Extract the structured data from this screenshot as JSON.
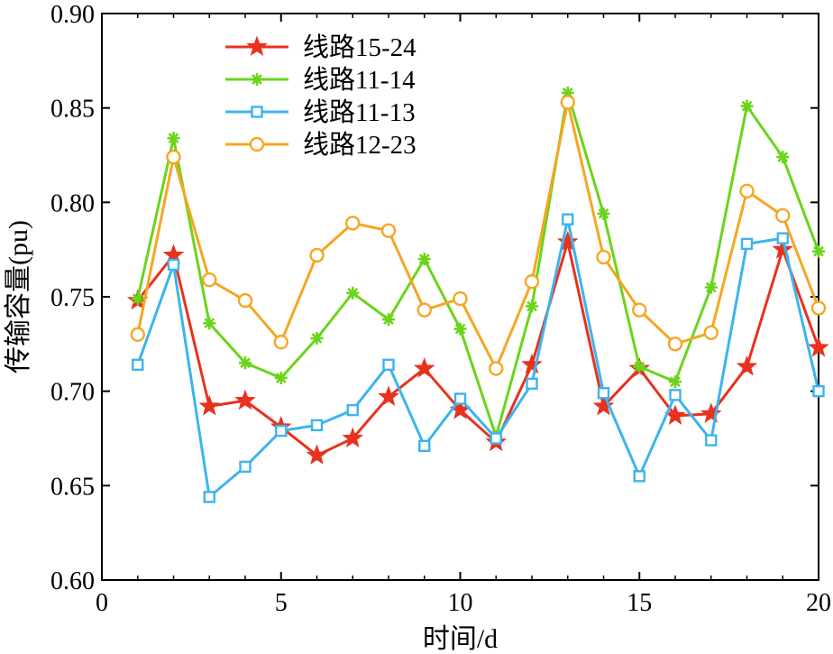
{
  "chart_data": {
    "type": "line",
    "xlabel": "时间/d",
    "ylabel": "传输容量(pu)",
    "xlim": [
      0,
      20
    ],
    "ylim": [
      0.6,
      0.9
    ],
    "xticks": [
      "0",
      "5",
      "10",
      "15",
      "20"
    ],
    "yticks": [
      "0.60",
      "0.65",
      "0.70",
      "0.75",
      "0.80",
      "0.85",
      "0.90"
    ],
    "grid": false,
    "legend_position": "top-left",
    "x": [
      1,
      2,
      3,
      4,
      5,
      6,
      7,
      8,
      9,
      10,
      11,
      12,
      13,
      14,
      15,
      16,
      17,
      18,
      19,
      20
    ],
    "series": [
      {
        "name": "线路15-24",
        "color": "#e8321e",
        "marker": "star",
        "values": [
          0.748,
          0.772,
          0.692,
          0.695,
          0.681,
          0.666,
          0.675,
          0.697,
          0.712,
          0.69,
          0.673,
          0.714,
          0.779,
          0.692,
          0.712,
          0.687,
          0.688,
          0.713,
          0.775,
          0.723
        ]
      },
      {
        "name": "线路11-14",
        "color": "#6bd41b",
        "marker": "asterisk",
        "values": [
          0.749,
          0.834,
          0.736,
          0.715,
          0.707,
          0.728,
          0.752,
          0.738,
          0.77,
          0.733,
          0.676,
          0.745,
          0.858,
          0.794,
          0.713,
          0.705,
          0.755,
          0.851,
          0.824,
          0.774
        ]
      },
      {
        "name": "线路11-13",
        "color": "#3cb4ee",
        "marker": "square",
        "values": [
          0.714,
          0.767,
          0.644,
          0.66,
          0.679,
          0.682,
          0.69,
          0.714,
          0.671,
          0.696,
          0.675,
          0.704,
          0.791,
          0.699,
          0.655,
          0.698,
          0.674,
          0.778,
          0.781,
          0.7
        ]
      },
      {
        "name": "线路12-23",
        "color": "#f5a623",
        "marker": "circle",
        "values": [
          0.73,
          0.824,
          0.759,
          0.748,
          0.726,
          0.772,
          0.789,
          0.785,
          0.743,
          0.749,
          0.712,
          0.758,
          0.853,
          0.771,
          0.743,
          0.725,
          0.731,
          0.806,
          0.793,
          0.744
        ]
      }
    ]
  }
}
